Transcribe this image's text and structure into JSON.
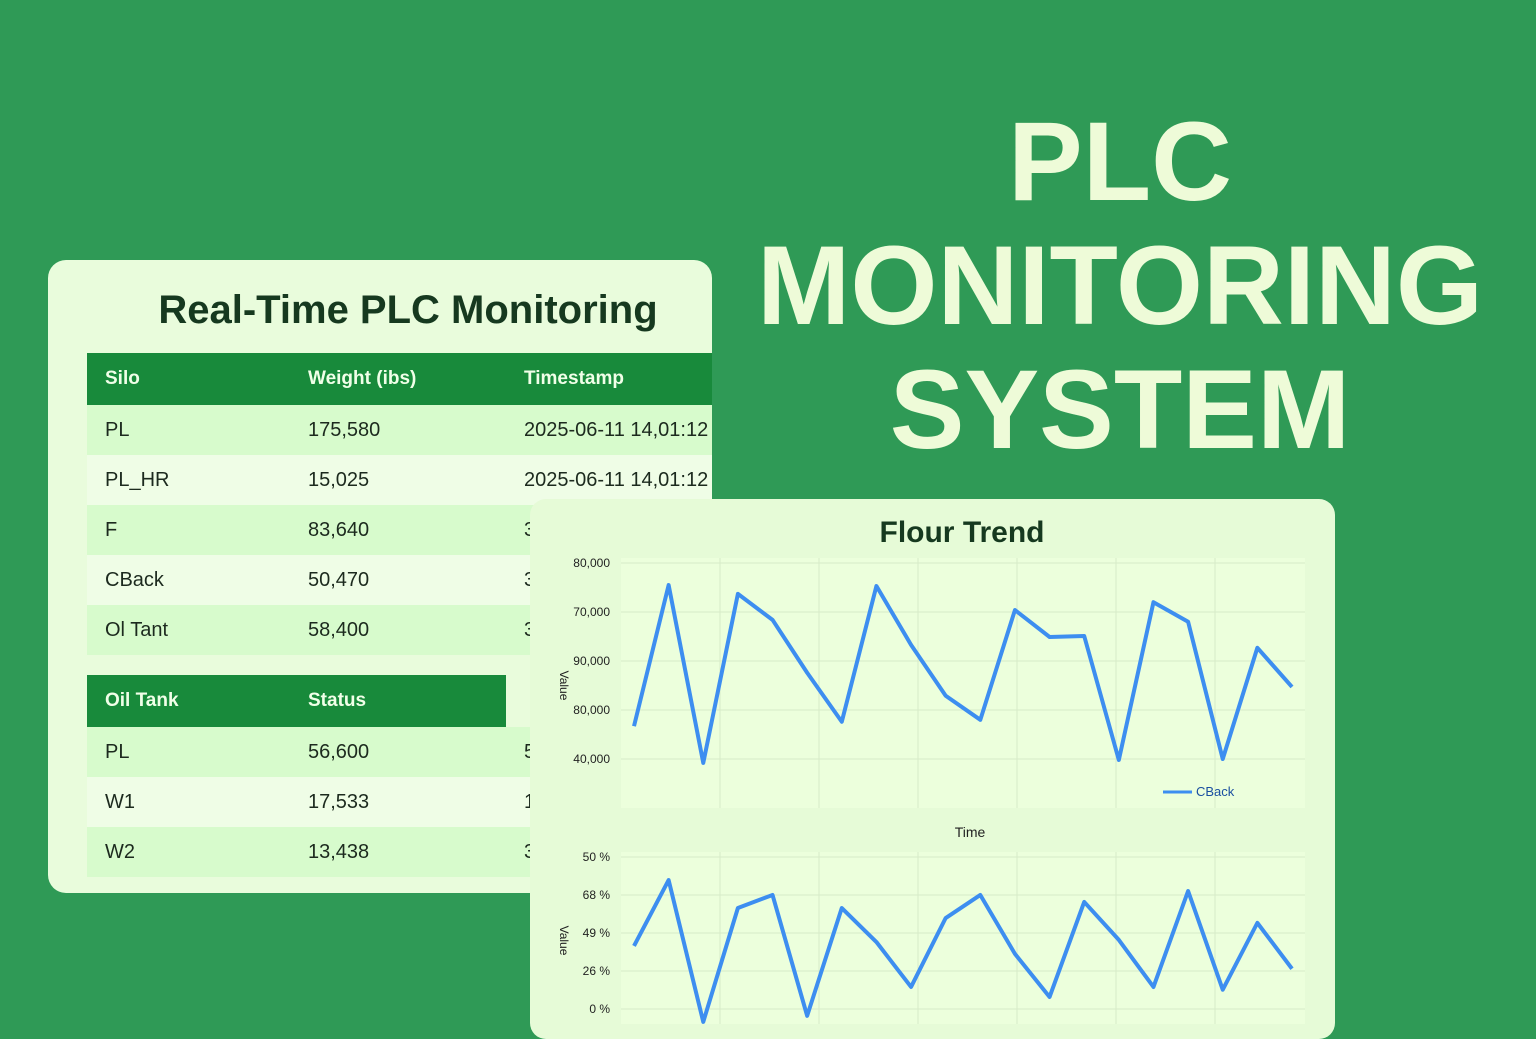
{
  "banner": {
    "lines": [
      "PLC",
      "MONITORING",
      "SYSTEM"
    ]
  },
  "table_card": {
    "title": "Real-Time PLC Monitoring",
    "tables": [
      {
        "header": [
          "Silo",
          "Weight (ibs)",
          "Timestamp"
        ],
        "rows": [
          [
            "PL",
            "175,580",
            "2025-06-11 14,01:12"
          ],
          [
            "PL_HR",
            "15,025",
            "2025-06-11 14,01:12"
          ],
          [
            "F",
            "83,640",
            "3"
          ],
          [
            "CBack",
            "50,470",
            "3"
          ],
          [
            "Ol Tant",
            "58,400",
            "3"
          ]
        ]
      },
      {
        "header": [
          "Oil Tank",
          "Status"
        ],
        "rows": [
          [
            "PL",
            "56,600",
            "5"
          ],
          [
            "W1",
            "17,533",
            "1"
          ],
          [
            "W2",
            "13,438",
            "3"
          ]
        ]
      }
    ]
  },
  "chart_panel": {
    "title": "Flour Trend",
    "x_label": "Time",
    "charts": [
      {
        "type": "line",
        "y_label": "Value",
        "y_labels": [
          "80,000",
          "70,000",
          "90,000",
          "80,000",
          "40,000"
        ],
        "ylim": [
          30000,
          80000
        ],
        "series": [
          {
            "name": "CBack",
            "color": "#3d8ef0",
            "values": [
              46700,
              75500,
              39200,
              73700,
              68400,
              57600,
              47600,
              75300,
              63300,
              52900,
              48000,
              70400,
              64900,
              65100,
              39800,
              72000,
              68000,
              40000,
              62700,
              54700
            ]
          }
        ]
      },
      {
        "type": "line",
        "y_label": "Value",
        "y_labels": [
          "50 %",
          "68 %",
          "49 %",
          "26 %",
          "0 %"
        ],
        "ylim": [
          -5,
          50
        ],
        "series": [
          {
            "color": "#3d8ef0",
            "values": [
              20.7,
              42.4,
              -4.3,
              33.2,
              37.5,
              -2.3,
              33.2,
              22.0,
              7.2,
              29.9,
              37.5,
              18.1,
              3.9,
              35.2,
              22.7,
              7.2,
              38.8,
              6.3,
              28.3,
              13.2
            ]
          }
        ]
      }
    ]
  }
}
